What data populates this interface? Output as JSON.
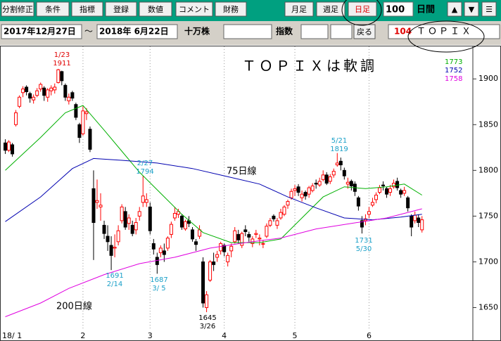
{
  "toolbar": {
    "buttons": [
      "分割修正",
      "条件",
      "指標",
      "登録",
      "数値",
      "コメント",
      "財務"
    ],
    "periods": [
      "月足",
      "週足",
      "日足"
    ],
    "days": 100,
    "days_label": "日間",
    "controls": [
      "▲",
      "▼",
      "☰"
    ]
  },
  "range": {
    "start": "2017年12月27日",
    "separator": "～",
    "end": "2018年 6月22日",
    "unit": "十万株",
    "index_label": "指数",
    "back": "戻る",
    "code": 104,
    "name": "ＴＯＰＩＸ"
  },
  "chart_data": {
    "type": "candlestick",
    "title": "ＴＯＰＩＸは軟調",
    "up_color": "#ff0000",
    "down_color": "#000000",
    "grid": true,
    "ylim": [
      1625,
      1934
    ],
    "yticks": [
      1650,
      1700,
      1750,
      1800,
      1850,
      1900
    ],
    "xlim": [
      -0.5,
      132.4
    ],
    "xticks": [
      {
        "value": 0,
        "label": "18/ 1"
      },
      {
        "value": 22,
        "label": "2"
      },
      {
        "value": 41,
        "label": "3"
      },
      {
        "value": 62,
        "label": "4"
      },
      {
        "value": 82,
        "label": "5"
      },
      {
        "value": 103,
        "label": "6"
      }
    ],
    "candles": [
      [
        1830,
        1834,
        1818,
        1822
      ],
      [
        1822,
        1833,
        1820,
        1831
      ],
      [
        1828,
        1830,
        1815,
        1818
      ],
      [
        1850,
        1866,
        1848,
        1863
      ],
      [
        1870,
        1882,
        1868,
        1880
      ],
      [
        1885,
        1892,
        1880,
        1889
      ],
      [
        1891,
        1893,
        1882,
        1886
      ],
      [
        1884,
        1886,
        1874,
        1879
      ],
      [
        1877,
        1883,
        1873,
        1880
      ],
      [
        1882,
        1890,
        1880,
        1887
      ],
      [
        1889,
        1896,
        1886,
        1894
      ],
      [
        1890,
        1892,
        1876,
        1882
      ],
      [
        1880,
        1890,
        1875,
        1888
      ],
      [
        1887,
        1893,
        1882,
        1890
      ],
      [
        1888,
        1895,
        1884,
        1891
      ],
      [
        1896,
        1911,
        1895,
        1910
      ],
      [
        1908,
        1909,
        1893,
        1898
      ],
      [
        1893,
        1895,
        1876,
        1880
      ],
      [
        1876,
        1884,
        1872,
        1880
      ],
      [
        1885,
        1887,
        1876,
        1879
      ],
      [
        1872,
        1874,
        1855,
        1858
      ],
      [
        1850,
        1852,
        1830,
        1836
      ],
      [
        1840,
        1870,
        1838,
        1865
      ],
      [
        1862,
        1868,
        1855,
        1864
      ],
      [
        1845,
        1848,
        1820,
        1823
      ],
      [
        1780,
        1800,
        1702,
        1743
      ],
      [
        1765,
        1790,
        1758,
        1767
      ],
      [
        1760,
        1775,
        1745,
        1762
      ],
      [
        1740,
        1745,
        1725,
        1731
      ],
      [
        1728,
        1740,
        1712,
        1722
      ],
      [
        1718,
        1728,
        1691,
        1707
      ],
      [
        1715,
        1730,
        1705,
        1716
      ],
      [
        1722,
        1740,
        1718,
        1734
      ],
      [
        1745,
        1763,
        1742,
        1760
      ],
      [
        1755,
        1760,
        1735,
        1738
      ],
      [
        1742,
        1752,
        1735,
        1748
      ],
      [
        1740,
        1745,
        1728,
        1731
      ],
      [
        1735,
        1748,
        1730,
        1743
      ],
      [
        1750,
        1760,
        1745,
        1755
      ],
      [
        1765,
        1794,
        1760,
        1772
      ],
      [
        1765,
        1775,
        1760,
        1768
      ],
      [
        1760,
        1765,
        1730,
        1734
      ],
      [
        1720,
        1725,
        1708,
        1714
      ],
      [
        1705,
        1710,
        1687,
        1697
      ],
      [
        1710,
        1718,
        1705,
        1715
      ],
      [
        1712,
        1720,
        1700,
        1708
      ],
      [
        1715,
        1728,
        1712,
        1726
      ],
      [
        1730,
        1744,
        1726,
        1741
      ],
      [
        1748,
        1760,
        1745,
        1753
      ],
      [
        1752,
        1758,
        1748,
        1755
      ],
      [
        1750,
        1752,
        1735,
        1738
      ],
      [
        1736,
        1746,
        1734,
        1744
      ],
      [
        1745,
        1750,
        1738,
        1742
      ],
      [
        1735,
        1738,
        1722,
        1725
      ],
      [
        1722,
        1725,
        1712,
        1719
      ],
      [
        1728,
        1740,
        1725,
        1735
      ],
      [
        1700,
        1705,
        1650,
        1655
      ],
      [
        1650,
        1668,
        1645,
        1664
      ],
      [
        1680,
        1702,
        1678,
        1700
      ],
      [
        1700,
        1710,
        1690,
        1697
      ],
      [
        1705,
        1712,
        1700,
        1708
      ],
      [
        1712,
        1722,
        1708,
        1720
      ],
      [
        1718,
        1720,
        1706,
        1711
      ],
      [
        1700,
        1710,
        1695,
        1707
      ],
      [
        1712,
        1720,
        1705,
        1717
      ],
      [
        1722,
        1738,
        1720,
        1734
      ],
      [
        1730,
        1735,
        1720,
        1724
      ],
      [
        1718,
        1733,
        1715,
        1731
      ],
      [
        1735,
        1740,
        1728,
        1733
      ],
      [
        1730,
        1733,
        1722,
        1727
      ],
      [
        1720,
        1728,
        1716,
        1725
      ],
      [
        1730,
        1735,
        1726,
        1731
      ],
      [
        1725,
        1730,
        1718,
        1726
      ],
      [
        1720,
        1724,
        1715,
        1720
      ],
      [
        1728,
        1742,
        1726,
        1739
      ],
      [
        1740,
        1748,
        1738,
        1745
      ],
      [
        1750,
        1752,
        1744,
        1747
      ],
      [
        1740,
        1748,
        1736,
        1745
      ],
      [
        1748,
        1758,
        1746,
        1754
      ],
      [
        1752,
        1762,
        1750,
        1760
      ],
      [
        1762,
        1768,
        1758,
        1766
      ],
      [
        1770,
        1780,
        1768,
        1777
      ],
      [
        1778,
        1784,
        1772,
        1780
      ],
      [
        1782,
        1785,
        1772,
        1776
      ],
      [
        1770,
        1778,
        1766,
        1774
      ],
      [
        1776,
        1778,
        1768,
        1772
      ],
      [
        1774,
        1783,
        1770,
        1781
      ],
      [
        1778,
        1786,
        1776,
        1783
      ],
      [
        1786,
        1790,
        1780,
        1785
      ],
      [
        1784,
        1792,
        1782,
        1788
      ],
      [
        1790,
        1800,
        1788,
        1795
      ],
      [
        1795,
        1798,
        1784,
        1786
      ],
      [
        1788,
        1796,
        1785,
        1793
      ],
      [
        1795,
        1802,
        1792,
        1799
      ],
      [
        1806,
        1819,
        1804,
        1808
      ],
      [
        1810,
        1814,
        1800,
        1806
      ],
      [
        1800,
        1803,
        1790,
        1794
      ],
      [
        1785,
        1792,
        1780,
        1787
      ],
      [
        1788,
        1790,
        1778,
        1783
      ],
      [
        1785,
        1788,
        1772,
        1777
      ],
      [
        1770,
        1772,
        1756,
        1761
      ],
      [
        1745,
        1750,
        1731,
        1738
      ],
      [
        1745,
        1752,
        1740,
        1747
      ],
      [
        1752,
        1760,
        1748,
        1755
      ],
      [
        1762,
        1770,
        1760,
        1765
      ],
      [
        1768,
        1776,
        1764,
        1773
      ],
      [
        1776,
        1784,
        1774,
        1781
      ],
      [
        1784,
        1788,
        1778,
        1783
      ],
      [
        1780,
        1782,
        1770,
        1774
      ],
      [
        1776,
        1784,
        1772,
        1780
      ],
      [
        1782,
        1790,
        1780,
        1786
      ],
      [
        1788,
        1792,
        1778,
        1781
      ],
      [
        1778,
        1780,
        1770,
        1774
      ],
      [
        1775,
        1782,
        1772,
        1778
      ],
      [
        1770,
        1772,
        1755,
        1759
      ],
      [
        1750,
        1752,
        1728,
        1738
      ],
      [
        1745,
        1755,
        1742,
        1751
      ],
      [
        1748,
        1752,
        1738,
        1743
      ],
      [
        1735,
        1750,
        1732,
        1746
      ]
    ],
    "series": [
      {
        "color": "#00b000",
        "latest": 1773,
        "x": [
          0,
          10,
          17,
          22,
          28,
          33,
          38,
          44,
          50,
          56,
          64,
          72,
          78,
          84,
          90,
          96,
          102,
          108,
          113,
          118
        ],
        "values": [
          1800,
          1836,
          1863,
          1871,
          1844,
          1821,
          1798,
          1775,
          1752,
          1732,
          1721,
          1721,
          1725,
          1748,
          1771,
          1782,
          1780,
          1782,
          1785,
          1773
        ]
      },
      {
        "color": "#0000b0",
        "latest": 1752,
        "label": "75日線",
        "x": [
          0,
          10,
          19,
          25,
          33,
          43,
          53,
          62,
          72,
          80,
          88,
          96,
          104,
          112,
          118
        ],
        "values": [
          1744,
          1771,
          1802,
          1813,
          1811,
          1808,
          1802,
          1794,
          1785,
          1771,
          1759,
          1748,
          1746,
          1749,
          1752
        ]
      },
      {
        "color": "#e000e0",
        "latest": 1758,
        "label": "200日線",
        "x": [
          0,
          10,
          18,
          28,
          38,
          48,
          58,
          68,
          78,
          88,
          98,
          108,
          113,
          118
        ],
        "values": [
          1640,
          1655,
          1671,
          1686,
          1698,
          1705,
          1715,
          1721,
          1726,
          1736,
          1742,
          1748,
          1753,
          1758
        ]
      }
    ],
    "annotations": [
      {
        "lines": [
          "1/23",
          "1911"
        ],
        "color": "#e00000"
      },
      {
        "lines": [
          "2/27",
          "1794"
        ],
        "color": "#1aa0c8"
      },
      {
        "lines": [
          "1691",
          "2/14"
        ],
        "color": "#1aa0c8"
      },
      {
        "lines": [
          "1687",
          "3/ 5"
        ],
        "color": "#1aa0c8"
      },
      {
        "lines": [
          "1645",
          "3/26"
        ],
        "color": "#000000"
      },
      {
        "lines": [
          "5/21",
          "1819"
        ],
        "color": "#1aa0c8"
      },
      {
        "lines": [
          "1731",
          "5/30"
        ],
        "color": "#1aa0c8"
      }
    ]
  }
}
